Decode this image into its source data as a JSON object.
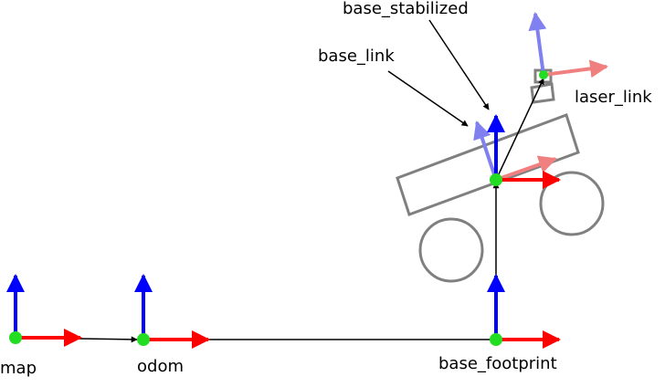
{
  "frames": {
    "map": "map",
    "odom": "odom",
    "base_footprint": "base_footprint",
    "base_link": "base_link",
    "base_stabilized": "base_stabilized",
    "laser_link": "laser_link"
  },
  "colors": {
    "x_axis": "#ff0000",
    "y_axis": "#0000ff",
    "x_axis_faded": "#f08080",
    "y_axis_faded": "#8080f0",
    "origin": "#22dd22",
    "robot_outline": "#808080",
    "link": "#000000"
  }
}
